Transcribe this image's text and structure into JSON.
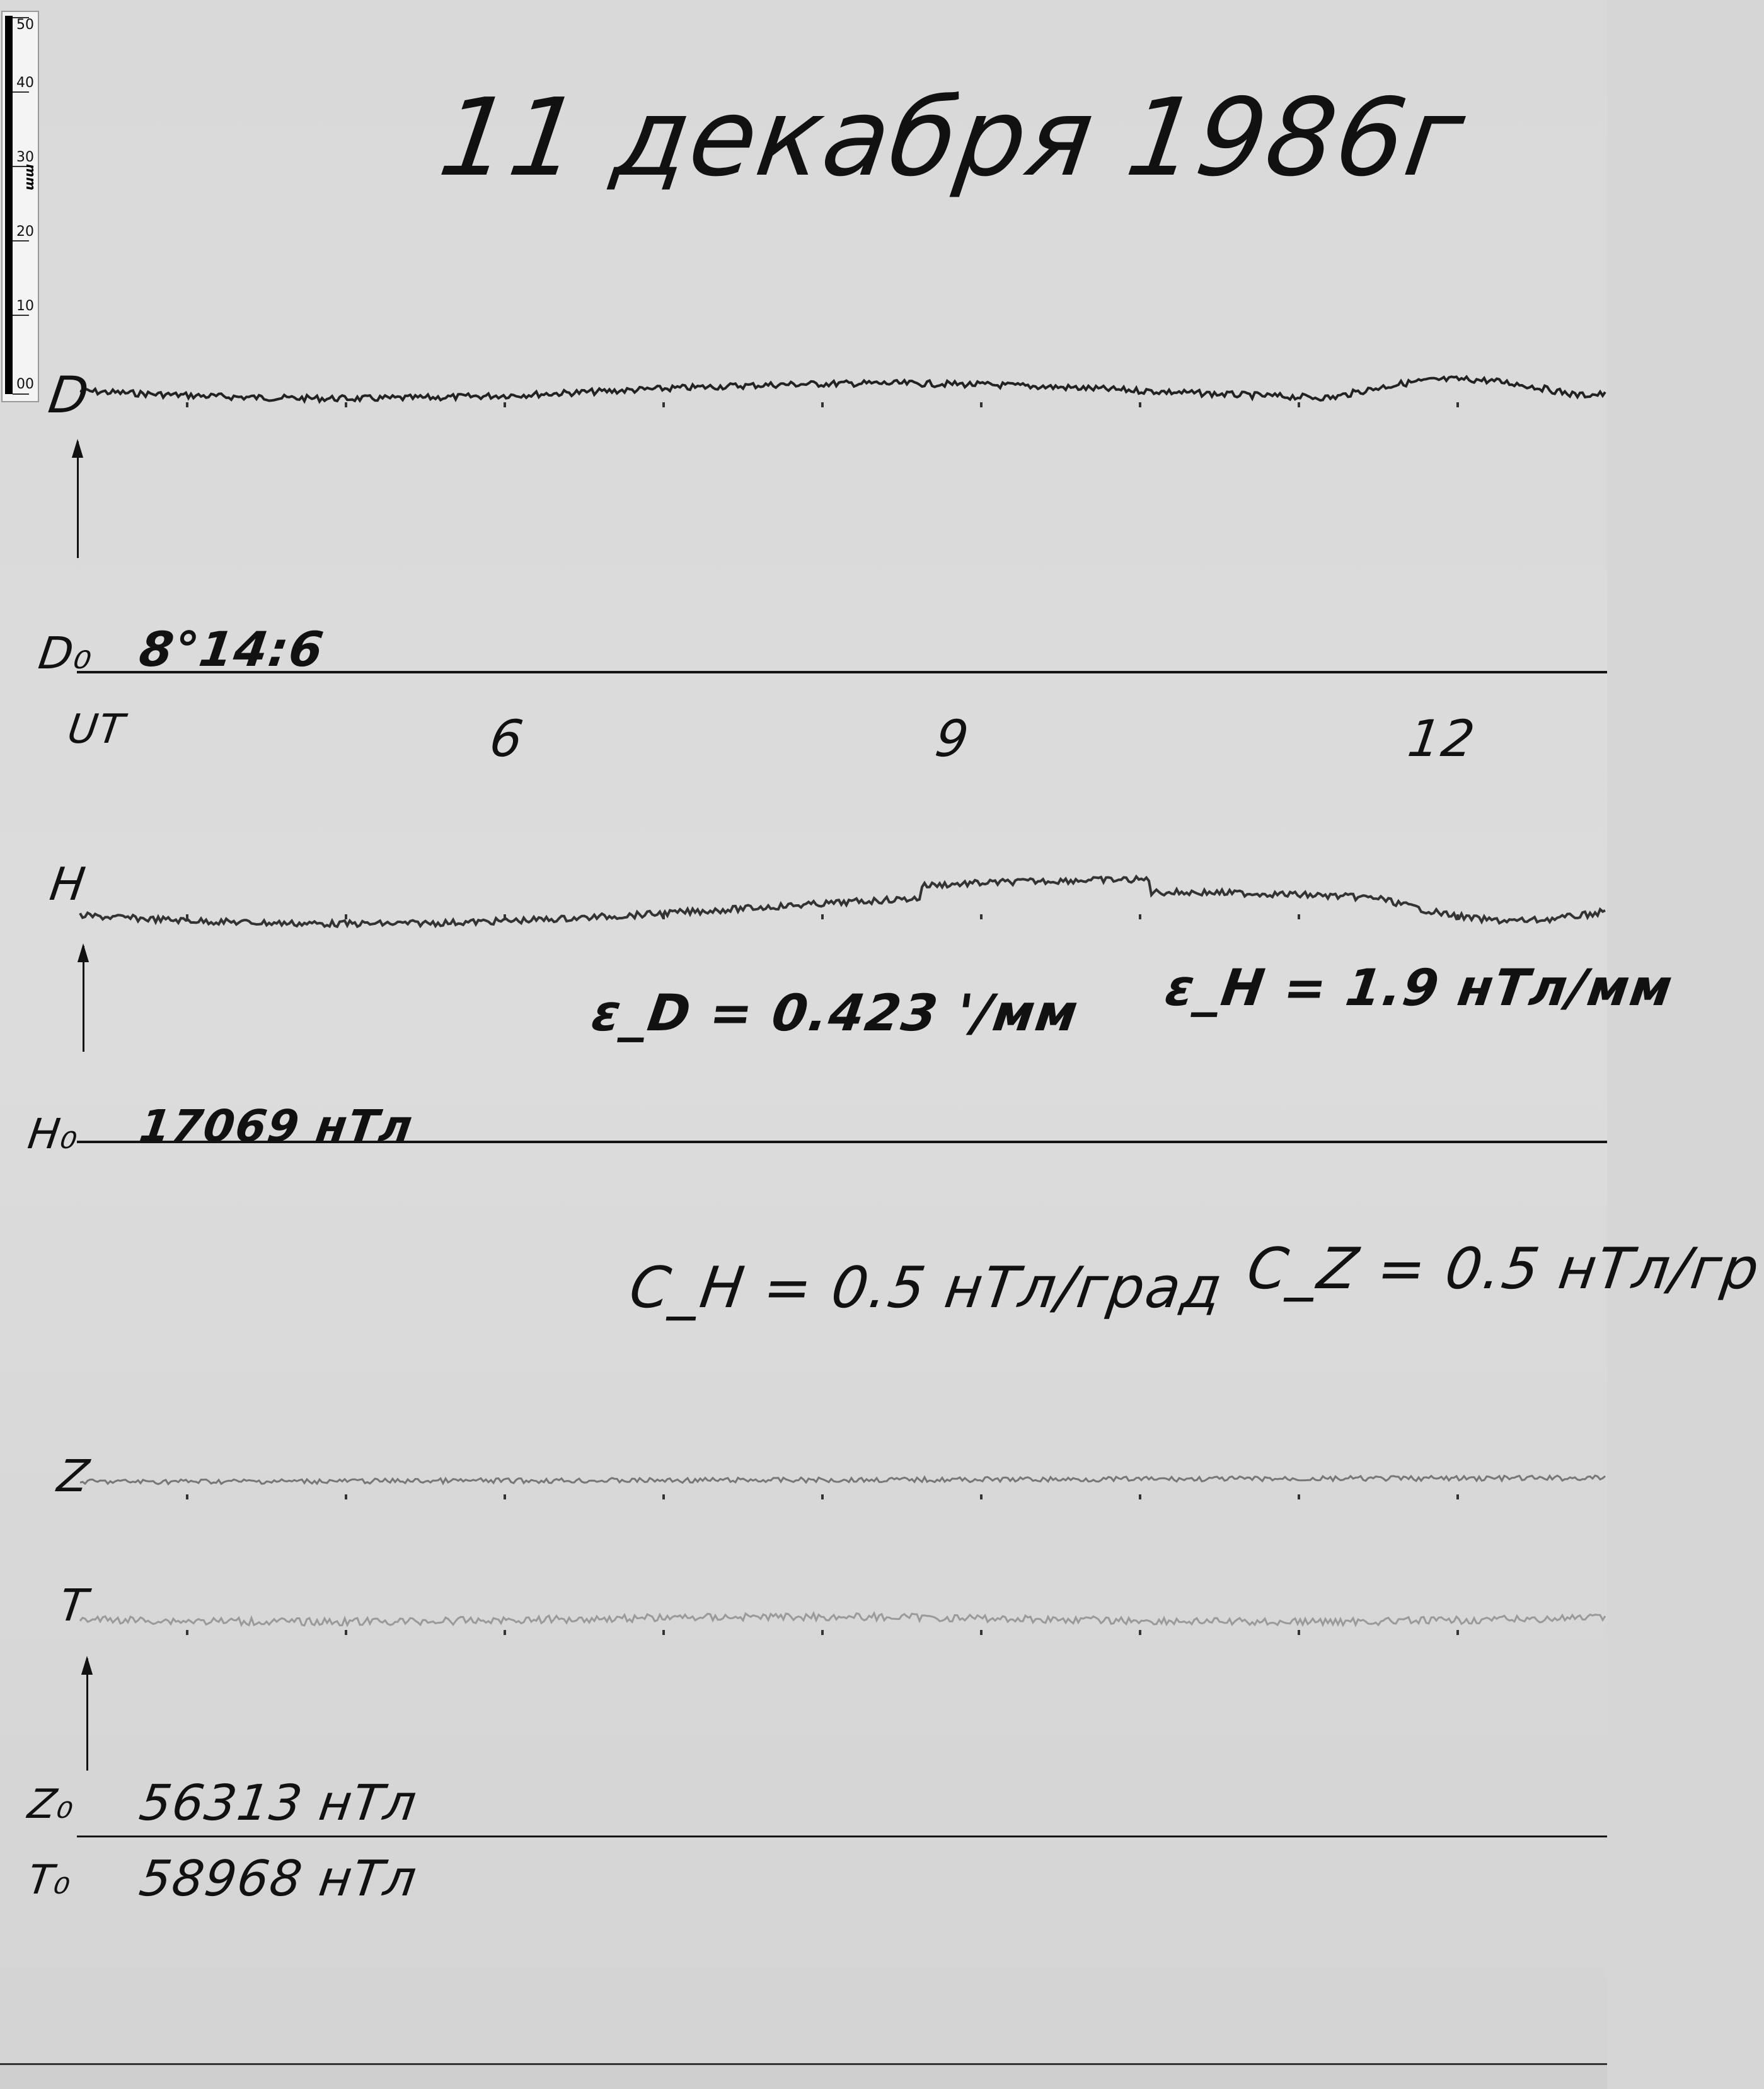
{
  "title": "11 декабря 1986г",
  "ruler": {
    "unit": "mm",
    "ticks": [
      "50",
      "40",
      "30",
      "20",
      "10",
      "00"
    ]
  },
  "channels": {
    "D": {
      "label": "D",
      "baseline_label": "D₀",
      "baseline_value": "8°14:6"
    },
    "H": {
      "label": "H",
      "baseline_label": "H₀",
      "baseline_value": "17069 нТл"
    },
    "Z": {
      "label": "Z",
      "baseline_label": "Z₀",
      "baseline_value": "56313 нТл"
    },
    "T": {
      "label": "T",
      "baseline_label": "T₀",
      "baseline_value": "58968 нТл"
    }
  },
  "time_axis": {
    "label": "UT",
    "hours": [
      "6",
      "9",
      "12"
    ]
  },
  "scale_values": {
    "epsilon_D": "ε_D = 0.423 '/мм",
    "epsilon_H": "ε_H = 1.9 нТл/мм",
    "C_H": "C_H = 0.5 нТл/град",
    "C_Z": "C_Z = 0.5 нТл/гр"
  },
  "colors": {
    "ink": "#111111",
    "paper": "#d9d9d9",
    "trace_D": "#222222",
    "trace_H": "#333333",
    "trace_Z": "#777777",
    "trace_T": "#9a9a9a"
  }
}
